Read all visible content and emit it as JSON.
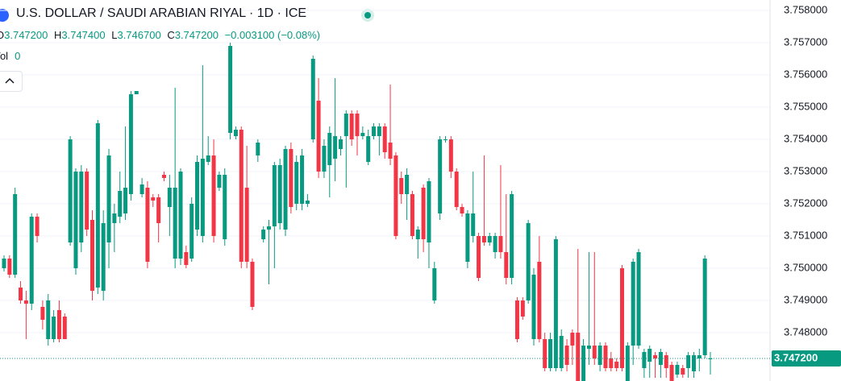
{
  "header": {
    "title": "U.S. DOLLAR / SAUDI ARABIAN RIYAL · 1D · ICE",
    "ohlc": [
      {
        "label": "O",
        "value": "3.747200"
      },
      {
        "label": "H",
        "value": "3.747400"
      },
      {
        "label": "L",
        "value": "3.746700"
      },
      {
        "label": "C",
        "value": "3.747200"
      }
    ],
    "change": "−0.003100 (−0.08%)",
    "volume_label": "Vol",
    "volume": "0"
  },
  "chart_data": {
    "type": "candlestick",
    "up_color": "#089981",
    "down_color": "#f23645",
    "ylim": [
      3.7465,
      3.758325
    ],
    "yticks": [
      {
        "value": 3.758,
        "label": "3.758000"
      },
      {
        "value": 3.757,
        "label": "3.757000"
      },
      {
        "value": 3.756,
        "label": "3.756000"
      },
      {
        "value": 3.755,
        "label": "3.755000"
      },
      {
        "value": 3.754,
        "label": "3.754000"
      },
      {
        "value": 3.753,
        "label": "3.753000"
      },
      {
        "value": 3.752,
        "label": "3.752000"
      },
      {
        "value": 3.751,
        "label": "3.751000"
      },
      {
        "value": 3.75,
        "label": "3.750000"
      },
      {
        "value": 3.749,
        "label": "3.749000"
      },
      {
        "value": 3.748,
        "label": "3.748000"
      }
    ],
    "last_price": {
      "value": 3.7472,
      "label": "3.747200"
    },
    "grid": true,
    "candles": [
      [
        3.75,
        3.7504,
        3.7499,
        3.7503
      ],
      [
        3.7503,
        3.7504,
        3.7497,
        3.7498
      ],
      [
        3.7498,
        3.7525,
        3.7497,
        3.7523
      ],
      [
        3.7494,
        3.7496,
        3.7489,
        3.749
      ],
      [
        3.749,
        3.7493,
        3.7478,
        3.7489
      ],
      [
        3.7489,
        3.7517,
        3.7487,
        3.7516
      ],
      [
        3.7516,
        3.7517,
        3.7508,
        3.751
      ],
      [
        3.7488,
        3.749,
        3.7481,
        3.7484
      ],
      [
        3.7478,
        3.7492,
        3.7476,
        3.749
      ],
      [
        3.7478,
        3.7487,
        3.7477,
        3.7485
      ],
      [
        3.7487,
        3.749,
        3.7477,
        3.7478
      ],
      [
        3.7485,
        3.7486,
        3.7478,
        3.7478
      ],
      [
        3.7508,
        3.7541,
        3.7507,
        3.754
      ],
      [
        3.75,
        3.7531,
        3.7498,
        3.753
      ],
      [
        3.7508,
        3.7532,
        3.7505,
        3.753
      ],
      [
        3.753,
        3.7531,
        3.751,
        3.7512
      ],
      [
        3.7515,
        3.7518,
        3.749,
        3.7493
      ],
      [
        3.7494,
        3.7546,
        3.7492,
        3.7545
      ],
      [
        3.7493,
        3.7518,
        3.749,
        3.7514
      ],
      [
        3.7508,
        3.7537,
        3.75,
        3.7535
      ],
      [
        3.7514,
        3.752,
        3.7505,
        3.7517
      ],
      [
        3.7516,
        3.753,
        3.7514,
        3.7524
      ],
      [
        3.7517,
        3.7544,
        3.7515,
        3.7525
      ],
      [
        3.7523,
        3.7555,
        3.7521,
        3.7554
      ],
      [
        3.7554,
        3.7555,
        3.7554,
        3.7555
      ],
      [
        3.7523,
        3.7528,
        3.7522,
        3.7526
      ],
      [
        3.7525,
        3.7527,
        3.75,
        3.7502
      ],
      [
        3.7522,
        3.7523,
        3.7519,
        3.7521
      ],
      [
        3.7522,
        3.7523,
        3.7508,
        3.7514
      ],
      [
        3.7529,
        3.753,
        3.7527,
        3.7528
      ],
      [
        3.7519,
        3.7529,
        3.751,
        3.7525
      ],
      [
        3.7503,
        3.7556,
        3.75,
        3.7525
      ],
      [
        3.7503,
        3.7531,
        3.7501,
        3.753
      ],
      [
        3.7505,
        3.7507,
        3.75,
        3.7501
      ],
      [
        3.7503,
        3.7522,
        3.7502,
        3.752
      ],
      [
        3.7512,
        3.7535,
        3.751,
        3.7533
      ],
      [
        3.751,
        3.7563,
        3.7508,
        3.7534
      ],
      [
        3.7533,
        3.7541,
        3.7532,
        3.7535
      ],
      [
        3.7535,
        3.754,
        3.7508,
        3.751
      ],
      [
        3.7525,
        3.753,
        3.7524,
        3.7529
      ],
      [
        3.7509,
        3.7531,
        3.7507,
        3.7529
      ],
      [
        3.7542,
        3.757,
        3.754,
        3.7569
      ],
      [
        3.7541,
        3.7544,
        3.754,
        3.7543
      ],
      [
        3.7543,
        3.7544,
        3.75,
        3.7502
      ],
      [
        3.7525,
        3.7538,
        3.75,
        3.7502
      ],
      [
        3.7502,
        3.7503,
        3.7487,
        3.7488
      ],
      [
        3.7535,
        3.754,
        3.7533,
        3.7539
      ],
      [
        3.7509,
        3.7513,
        3.7508,
        3.7512
      ],
      [
        3.7512,
        3.7515,
        3.7495,
        3.7513
      ],
      [
        3.7513,
        3.7533,
        3.75,
        3.7532
      ],
      [
        3.7514,
        3.7534,
        3.7512,
        3.7532
      ],
      [
        3.7512,
        3.7538,
        3.751,
        3.7537
      ],
      [
        3.7537,
        3.7539,
        3.7517,
        3.7519
      ],
      [
        3.752,
        3.7535,
        3.7518,
        3.7533
      ],
      [
        3.752,
        3.7537,
        3.7518,
        3.7535
      ],
      [
        3.752,
        3.7523,
        3.7519,
        3.7521
      ],
      [
        3.754,
        3.7566,
        3.7539,
        3.7565
      ],
      [
        3.7552,
        3.7559,
        3.7528,
        3.753
      ],
      [
        3.753,
        3.754,
        3.7528,
        3.7538
      ],
      [
        3.7532,
        3.7544,
        3.7522,
        3.7542
      ],
      [
        3.7534,
        3.7559,
        3.7527,
        3.7541
      ],
      [
        3.7537,
        3.7541,
        3.7535,
        3.754
      ],
      [
        3.7541,
        3.7549,
        3.7525,
        3.7548
      ],
      [
        3.7548,
        3.7549,
        3.7538,
        3.754
      ],
      [
        3.7548,
        3.7549,
        3.7535,
        3.7541
      ],
      [
        3.7541,
        3.7544,
        3.754,
        3.7542
      ],
      [
        3.7533,
        3.7543,
        3.7532,
        3.7541
      ],
      [
        3.7541,
        3.7545,
        3.754,
        3.7544
      ],
      [
        3.7541,
        3.7545,
        3.7535,
        3.7544
      ],
      [
        3.7544,
        3.7545,
        3.7534,
        3.7536
      ],
      [
        3.7539,
        3.7557,
        3.7532,
        3.7534
      ],
      [
        3.7535,
        3.7536,
        3.7509,
        3.751
      ],
      [
        3.7528,
        3.753,
        3.752,
        3.7523
      ],
      [
        3.7523,
        3.7531,
        3.7515,
        3.7529
      ],
      [
        3.7523,
        3.7524,
        3.7509,
        3.751
      ],
      [
        3.7509,
        3.7513,
        3.7503,
        3.7512
      ],
      [
        3.7525,
        3.7526,
        3.7505,
        3.7509
      ],
      [
        3.7508,
        3.7528,
        3.75,
        3.7527
      ],
      [
        3.749,
        3.7502,
        3.7489,
        3.75
      ],
      [
        3.7517,
        3.7541,
        3.7515,
        3.754
      ],
      [
        3.754,
        3.7541,
        3.7539,
        3.754
      ],
      [
        3.754,
        3.7541,
        3.7528,
        3.753
      ],
      [
        3.753,
        3.7531,
        3.7518,
        3.7519
      ],
      [
        3.7519,
        3.752,
        3.7516,
        3.7517
      ],
      [
        3.7502,
        3.7518,
        3.75,
        3.7517
      ],
      [
        3.751,
        3.753,
        3.7508,
        3.7517
      ],
      [
        3.751,
        3.7511,
        3.7496,
        3.7497
      ],
      [
        3.751,
        3.7535,
        3.7507,
        3.7508
      ],
      [
        3.7508,
        3.7511,
        3.7507,
        3.751
      ],
      [
        3.7505,
        3.7511,
        3.7503,
        3.751
      ],
      [
        3.751,
        3.7532,
        3.7503,
        3.7505
      ],
      [
        3.7505,
        3.7523,
        3.7495,
        3.7497
      ],
      [
        3.7497,
        3.7524,
        3.7495,
        3.7523
      ],
      [
        3.749,
        3.7491,
        3.7477,
        3.7478
      ],
      [
        3.749,
        3.7491,
        3.7484,
        3.7485
      ],
      [
        3.749,
        3.7515,
        3.7489,
        3.7514
      ],
      [
        3.7478,
        3.75,
        3.7476,
        3.7498
      ],
      [
        3.7502,
        3.751,
        3.7477,
        3.7478
      ],
      [
        3.7478,
        3.748,
        3.7468,
        3.7469
      ],
      [
        3.7469,
        3.748,
        3.7468,
        3.7478
      ],
      [
        3.7469,
        3.751,
        3.7468,
        3.7509
      ],
      [
        3.7469,
        3.7481,
        3.7468,
        3.7479
      ],
      [
        3.7476,
        3.7478,
        3.7468,
        3.747
      ],
      [
        3.748,
        3.7481,
        3.747,
        3.7476
      ],
      [
        3.748,
        3.7506,
        3.7465,
        3.7465
      ],
      [
        3.7465,
        3.7478,
        3.7465,
        3.7476
      ],
      [
        3.7475,
        3.7505,
        3.747,
        3.7476
      ],
      [
        3.7476,
        3.7505,
        3.747,
        3.7472
      ],
      [
        3.747,
        3.7477,
        3.7468,
        3.7476
      ],
      [
        3.7476,
        3.7477,
        3.7468,
        3.7469
      ],
      [
        3.7472,
        3.7474,
        3.7468,
        3.7469
      ],
      [
        3.7471,
        3.7472,
        3.7468,
        3.7469
      ],
      [
        3.75,
        3.7501,
        3.7468,
        3.7469
      ],
      [
        3.7465,
        3.7477,
        3.7465,
        3.7476
      ],
      [
        3.7476,
        3.7503,
        3.747,
        3.7502
      ],
      [
        3.7476,
        3.7506,
        3.7475,
        3.7505
      ],
      [
        3.7469,
        3.7475,
        3.7466,
        3.7474
      ],
      [
        3.7471,
        3.7476,
        3.7466,
        3.7475
      ],
      [
        3.7473,
        3.7474,
        3.7466,
        3.7472
      ],
      [
        3.747,
        3.7475,
        3.7466,
        3.7474
      ],
      [
        3.7473,
        3.7474,
        3.7466,
        3.7469
      ],
      [
        3.747,
        3.7471,
        3.7465,
        3.7465
      ],
      [
        3.7467,
        3.7471,
        3.7466,
        3.747
      ],
      [
        3.7469,
        3.747,
        3.7466,
        3.7467
      ],
      [
        3.7469,
        3.7474,
        3.7466,
        3.7473
      ],
      [
        3.7468,
        3.7474,
        3.7466,
        3.7473
      ],
      [
        3.7472,
        3.7475,
        3.7468,
        3.7473
      ],
      [
        3.7473,
        3.7504,
        3.7472,
        3.7503
      ],
      [
        3.7472,
        3.7474,
        3.7467,
        3.7472
      ]
    ]
  }
}
